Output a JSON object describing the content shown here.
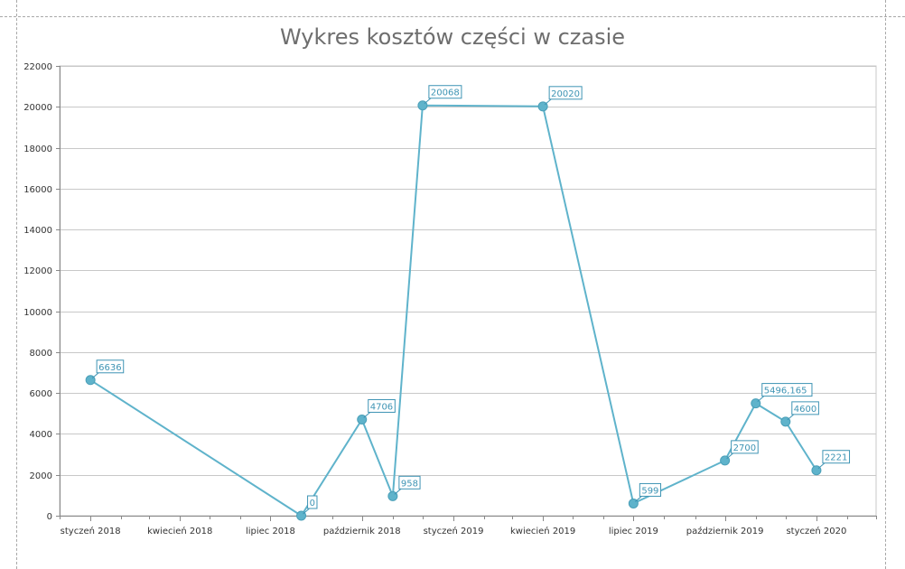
{
  "chart_data": {
    "type": "line",
    "title": "Wykres kosztów części w czasie",
    "xlabel": "",
    "ylabel": "",
    "ylim": [
      0,
      22000
    ],
    "yticks": [
      0,
      2000,
      4000,
      6000,
      8000,
      10000,
      12000,
      14000,
      16000,
      18000,
      20000,
      22000
    ],
    "xlim": [
      "2017-12-01",
      "2020-03-01"
    ],
    "xticks": [
      {
        "date": "2018-01-01",
        "label": "styczeń 2018"
      },
      {
        "date": "2018-04-01",
        "label": "kwiecień 2018"
      },
      {
        "date": "2018-07-01",
        "label": "lipiec 2018"
      },
      {
        "date": "2018-10-01",
        "label": "październik 2018"
      },
      {
        "date": "2019-01-01",
        "label": "styczeń 2019"
      },
      {
        "date": "2019-04-01",
        "label": "kwiecień 2019"
      },
      {
        "date": "2019-07-01",
        "label": "lipiec 2019"
      },
      {
        "date": "2019-10-01",
        "label": "październik 2019"
      },
      {
        "date": "2020-01-01",
        "label": "styczeń 2020"
      }
    ],
    "grid": true,
    "color": "#5fb3cb",
    "label_color": "#3e94b4",
    "points": [
      {
        "x": "2018-01-01",
        "y": 6636,
        "label": "6636"
      },
      {
        "x": "2018-08-01",
        "y": 0,
        "label": "0"
      },
      {
        "x": "2018-10-01",
        "y": 4706,
        "label": "4706"
      },
      {
        "x": "2018-11-01",
        "y": 958,
        "label": "958"
      },
      {
        "x": "2018-12-01",
        "y": 20068,
        "label": "20068"
      },
      {
        "x": "2019-04-01",
        "y": 20020,
        "label": "20020"
      },
      {
        "x": "2019-07-01",
        "y": 599,
        "label": "599"
      },
      {
        "x": "2019-10-01",
        "y": 2700,
        "label": "2700"
      },
      {
        "x": "2019-11-01",
        "y": 5496.165,
        "label": "5496,165"
      },
      {
        "x": "2019-12-01",
        "y": 4600,
        "label": "4600"
      },
      {
        "x": "2020-01-01",
        "y": 2221,
        "label": "2221"
      }
    ]
  }
}
